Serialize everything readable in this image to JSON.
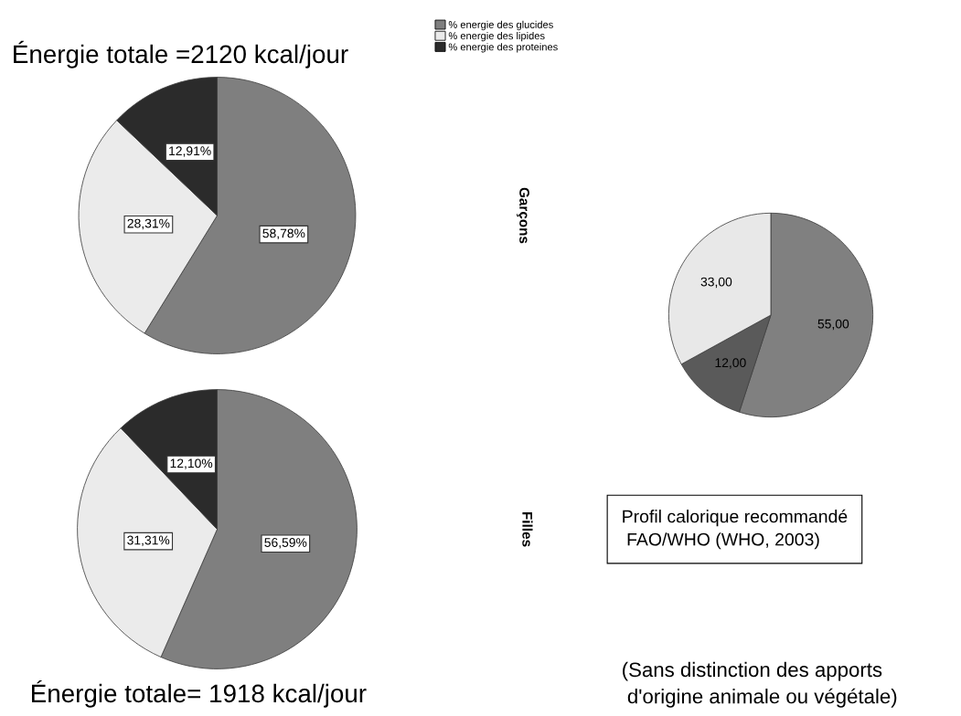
{
  "chart_data": [
    {
      "type": "pie",
      "title": "Énergie totale =2120 kcal/jour",
      "ylabel": "Garçons",
      "legend": "right",
      "categories": [
        "% energie des glucides",
        "% energie des lipides",
        "% energie des proteines"
      ],
      "values": [
        58.78,
        28.31,
        12.91
      ],
      "colors": [
        "#7f7f7f",
        "#ebebeb",
        "#2b2b2b"
      ],
      "value_labels": [
        "58,78%",
        "28,31%",
        "12,91%"
      ]
    },
    {
      "type": "pie",
      "xlabel": "Énergie totale= 1918 kcal/jour",
      "ylabel": "Filles",
      "categories": [
        null,
        null,
        null
      ],
      "values": [
        56.59,
        31.31,
        12.1
      ],
      "colors": [
        "#7f7f7f",
        "#ebebeb",
        "#2b2b2b"
      ],
      "value_labels": [
        "56,59%",
        "31,31%",
        "12,10%"
      ]
    },
    {
      "type": "pie",
      "categories": [
        null,
        null,
        null
      ],
      "values": [
        55,
        12,
        33
      ],
      "colors": [
        "#808080",
        "#5a5a5a",
        "#e8e8e8"
      ],
      "value_labels": [
        "55,00",
        "12,00",
        "33,00"
      ],
      "annotations": [
        "Profil calorique recommandé\n FAO/WHO (WHO, 2003)",
        "(Sans distinction des apports\n d'origine animale ou végétale)"
      ]
    }
  ]
}
